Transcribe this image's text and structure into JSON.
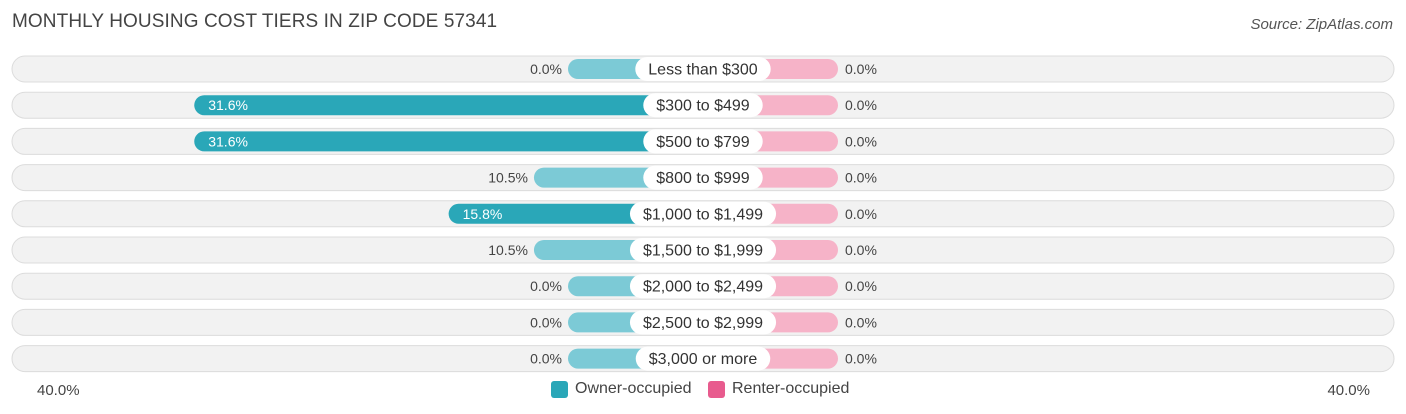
{
  "header": {
    "title": "MONTHLY HOUSING COST TIERS IN ZIP CODE 57341",
    "source": "Source: ZipAtlas.com"
  },
  "axis": {
    "left_label": "40.0%",
    "right_label": "40.0%"
  },
  "legend": {
    "owner_label": "Owner-occupied",
    "renter_label": "Renter-occupied"
  },
  "colors": {
    "owner_strong": "#2aa7b8",
    "owner_light": "#7ccad6",
    "renter": "#f1709a",
    "renter_light": "#f6b3c8",
    "row_bg": "#f2f2f2",
    "row_border": "#dcdcdc"
  },
  "chart_data": {
    "type": "bar",
    "orientation": "horizontal-diverging",
    "title": "MONTHLY HOUSING COST TIERS IN ZIP CODE 57341",
    "categories": [
      "Less than $300",
      "$300 to $499",
      "$500 to $799",
      "$800 to $999",
      "$1,000 to $1,499",
      "$1,500 to $1,999",
      "$2,000 to $2,499",
      "$2,500 to $2,999",
      "$3,000 or more"
    ],
    "series": [
      {
        "name": "Owner-occupied",
        "values": [
          0.0,
          31.6,
          31.6,
          10.5,
          15.8,
          10.5,
          0.0,
          0.0,
          0.0
        ],
        "labels": [
          "0.0%",
          "31.6%",
          "31.6%",
          "10.5%",
          "15.8%",
          "10.5%",
          "0.0%",
          "0.0%",
          "0.0%"
        ]
      },
      {
        "name": "Renter-occupied",
        "values": [
          0.0,
          0.0,
          0.0,
          0.0,
          0.0,
          0.0,
          0.0,
          0.0,
          0.0
        ],
        "labels": [
          "0.0%",
          "0.0%",
          "0.0%",
          "0.0%",
          "0.0%",
          "0.0%",
          "0.0%",
          "0.0%",
          "0.0%"
        ]
      }
    ],
    "xlim": [
      -40,
      40
    ],
    "unit": "%",
    "legend_position": "bottom-center"
  }
}
